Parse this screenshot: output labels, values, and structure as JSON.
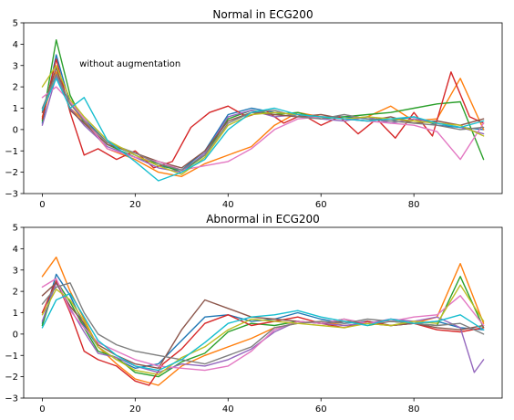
{
  "chart_data": [
    {
      "type": "line",
      "title": "Normal in ECG200",
      "annotation": "without augmentation",
      "xlim": [
        -4,
        99
      ],
      "ylim": [
        -3,
        5
      ],
      "xticks": [
        0,
        20,
        40,
        60,
        80
      ],
      "yticks": [
        -3,
        -2,
        -1,
        0,
        1,
        2,
        3,
        4,
        5
      ],
      "colors": [
        "#1f77b4",
        "#ff7f0e",
        "#2ca02c",
        "#d62728",
        "#9467bd",
        "#8c564b",
        "#e377c2",
        "#7f7f7f",
        "#bcbd22",
        "#17becf"
      ],
      "series": [
        {
          "x": [
            0,
            3,
            6,
            9,
            14,
            20,
            25,
            30,
            35,
            40,
            45,
            50,
            55,
            60,
            65,
            70,
            75,
            80,
            85,
            90,
            95
          ],
          "values": [
            0.3,
            3.5,
            1.2,
            0.5,
            -0.6,
            -1.2,
            -1.7,
            -1.9,
            -1.0,
            0.7,
            1.0,
            0.8,
            0.7,
            0.6,
            0.6,
            0.5,
            0.4,
            0.6,
            0.2,
            0.1,
            0.0
          ]
        },
        {
          "x": [
            0,
            3,
            6,
            9,
            14,
            20,
            25,
            30,
            35,
            40,
            45,
            50,
            55,
            60,
            65,
            70,
            75,
            80,
            85,
            90,
            95
          ],
          "values": [
            0.6,
            2.7,
            1.0,
            0.4,
            -0.9,
            -1.4,
            -2.0,
            -2.2,
            -1.6,
            -1.2,
            -0.8,
            0.2,
            0.8,
            0.6,
            0.5,
            0.6,
            1.1,
            0.4,
            0.5,
            2.4,
            0.0
          ]
        },
        {
          "x": [
            0,
            3,
            6,
            9,
            14,
            20,
            25,
            30,
            35,
            40,
            45,
            50,
            55,
            60,
            65,
            70,
            75,
            80,
            85,
            90,
            95
          ],
          "values": [
            0.4,
            4.2,
            1.6,
            0.3,
            -0.7,
            -1.3,
            -1.6,
            -2.0,
            -1.2,
            0.5,
            0.9,
            0.7,
            0.8,
            0.5,
            0.6,
            0.7,
            0.8,
            1.0,
            1.2,
            1.3,
            -1.4
          ]
        },
        {
          "x": [
            0,
            3,
            6,
            9,
            12,
            16,
            20,
            24,
            28,
            32,
            36,
            40,
            44,
            48,
            52,
            56,
            60,
            64,
            68,
            72,
            76,
            80,
            84,
            88,
            92,
            95
          ],
          "values": [
            0.5,
            3.3,
            0.8,
            -1.2,
            -0.9,
            -1.4,
            -1.0,
            -1.8,
            -1.5,
            0.1,
            0.8,
            1.1,
            0.6,
            0.9,
            0.3,
            0.7,
            0.2,
            0.6,
            -0.2,
            0.5,
            -0.4,
            0.8,
            -0.3,
            2.7,
            0.6,
            0.3
          ]
        },
        {
          "x": [
            0,
            3,
            6,
            9,
            14,
            20,
            25,
            30,
            35,
            40,
            45,
            50,
            55,
            60,
            65,
            70,
            75,
            80,
            85,
            90,
            95
          ],
          "values": [
            0.2,
            2.5,
            1.0,
            0.2,
            -0.8,
            -1.3,
            -1.8,
            -2.0,
            -1.1,
            0.6,
            0.9,
            0.6,
            0.7,
            0.5,
            0.4,
            0.6,
            0.3,
            0.5,
            0.3,
            0.1,
            -0.2
          ]
        },
        {
          "x": [
            0,
            3,
            6,
            9,
            14,
            20,
            25,
            30,
            35,
            40,
            45,
            50,
            55,
            60,
            65,
            70,
            75,
            80,
            85,
            90,
            95
          ],
          "values": [
            0.8,
            2.9,
            0.9,
            0.3,
            -0.7,
            -1.1,
            -1.5,
            -1.8,
            -1.0,
            0.4,
            0.8,
            0.7,
            0.6,
            0.7,
            0.5,
            0.4,
            0.6,
            0.3,
            0.4,
            0.2,
            0.5
          ]
        },
        {
          "x": [
            0,
            3,
            6,
            9,
            14,
            20,
            25,
            30,
            35,
            40,
            45,
            50,
            55,
            60,
            65,
            70,
            75,
            80,
            85,
            90,
            95
          ],
          "values": [
            1.5,
            2.0,
            1.3,
            0.5,
            -0.9,
            -1.3,
            -1.5,
            -1.9,
            -1.7,
            -1.5,
            -0.9,
            0.0,
            0.5,
            0.6,
            0.5,
            0.4,
            0.3,
            0.2,
            -0.1,
            -1.4,
            0.3
          ]
        },
        {
          "x": [
            0,
            3,
            6,
            9,
            14,
            20,
            25,
            30,
            35,
            40,
            45,
            50,
            55,
            60,
            65,
            70,
            75,
            80,
            85,
            90,
            95
          ],
          "values": [
            1.0,
            2.6,
            1.2,
            0.4,
            -0.6,
            -1.1,
            -1.6,
            -1.9,
            -1.2,
            0.3,
            0.8,
            0.9,
            0.6,
            0.5,
            0.7,
            0.5,
            0.4,
            0.3,
            0.2,
            0.0,
            0.1
          ]
        },
        {
          "x": [
            0,
            3,
            6,
            9,
            14,
            20,
            25,
            30,
            35,
            40,
            45,
            50,
            55,
            60,
            65,
            70,
            75,
            80,
            85,
            90,
            95
          ],
          "values": [
            2.0,
            3.0,
            1.4,
            0.6,
            -0.5,
            -1.2,
            -1.7,
            -2.1,
            -1.3,
            0.2,
            0.7,
            0.8,
            0.7,
            0.6,
            0.5,
            0.6,
            0.5,
            0.4,
            0.3,
            0.2,
            -0.3
          ]
        },
        {
          "x": [
            0,
            3,
            6,
            9,
            14,
            20,
            25,
            30,
            35,
            40,
            45,
            50,
            55,
            60,
            65,
            70,
            75,
            80,
            85,
            90,
            95
          ],
          "values": [
            0.9,
            2.4,
            1.0,
            1.5,
            -0.5,
            -1.5,
            -2.4,
            -2.0,
            -1.4,
            0.0,
            0.8,
            1.0,
            0.7,
            0.6,
            0.5,
            0.4,
            0.5,
            0.6,
            0.3,
            0.1,
            0.4
          ]
        }
      ]
    },
    {
      "type": "line",
      "title": "Abnormal in ECG200",
      "xlim": [
        -4,
        99
      ],
      "ylim": [
        -3,
        5
      ],
      "xticks": [
        0,
        20,
        40,
        60,
        80
      ],
      "yticks": [
        -3,
        -2,
        -1,
        0,
        1,
        2,
        3,
        4,
        5
      ],
      "colors": [
        "#1f77b4",
        "#ff7f0e",
        "#2ca02c",
        "#d62728",
        "#9467bd",
        "#8c564b",
        "#e377c2",
        "#7f7f7f",
        "#bcbd22",
        "#17becf"
      ],
      "series": [
        {
          "x": [
            0,
            3,
            6,
            9,
            12,
            16,
            20,
            25,
            30,
            35,
            40,
            45,
            50,
            55,
            60,
            65,
            70,
            75,
            80,
            85,
            90,
            95
          ],
          "values": [
            0.5,
            2.8,
            1.8,
            0.4,
            -0.6,
            -1.2,
            -1.6,
            -1.4,
            -0.3,
            0.8,
            0.9,
            0.6,
            0.7,
            1.0,
            0.7,
            0.5,
            0.6,
            0.4,
            0.5,
            0.6,
            0.3,
            0.2
          ]
        },
        {
          "x": [
            0,
            3,
            6,
            9,
            12,
            16,
            20,
            25,
            30,
            35,
            40,
            45,
            50,
            55,
            60,
            65,
            70,
            75,
            80,
            85,
            90,
            95
          ],
          "values": [
            2.7,
            3.6,
            2.0,
            0.7,
            -0.6,
            -1.4,
            -2.1,
            -2.4,
            -1.5,
            -1.0,
            -0.6,
            -0.2,
            0.3,
            0.5,
            0.6,
            0.4,
            0.5,
            0.6,
            0.5,
            0.8,
            3.3,
            0.5
          ]
        },
        {
          "x": [
            0,
            3,
            6,
            9,
            12,
            16,
            20,
            25,
            30,
            35,
            40,
            45,
            50,
            55,
            60,
            65,
            70,
            75,
            80,
            85,
            90,
            95
          ],
          "values": [
            0.4,
            2.5,
            1.5,
            0.3,
            -0.8,
            -1.1,
            -1.8,
            -2.0,
            -1.3,
            -0.9,
            0.1,
            0.5,
            0.4,
            0.6,
            0.5,
            0.7,
            0.4,
            0.6,
            0.5,
            0.4,
            2.7,
            0.3
          ]
        },
        {
          "x": [
            0,
            3,
            6,
            9,
            12,
            16,
            20,
            23,
            26,
            30,
            35,
            40,
            45,
            50,
            55,
            60,
            65,
            70,
            75,
            80,
            85,
            90,
            95
          ],
          "values": [
            1.0,
            2.5,
            1.0,
            -0.8,
            -1.2,
            -1.5,
            -2.2,
            -2.4,
            -1.4,
            -0.7,
            0.5,
            0.9,
            0.4,
            0.6,
            0.8,
            0.5,
            0.3,
            0.6,
            0.4,
            0.5,
            0.2,
            0.1,
            0.3
          ]
        },
        {
          "x": [
            0,
            3,
            6,
            9,
            12,
            16,
            20,
            25,
            30,
            35,
            40,
            45,
            50,
            55,
            60,
            65,
            70,
            75,
            80,
            85,
            90,
            93,
            95
          ],
          "values": [
            0.6,
            2.4,
            1.2,
            0.1,
            -0.9,
            -1.1,
            -1.5,
            -1.8,
            -1.4,
            -1.5,
            -1.2,
            -0.7,
            0.1,
            0.6,
            0.5,
            0.4,
            0.5,
            0.7,
            0.6,
            0.8,
            0.3,
            -1.8,
            -1.2
          ]
        },
        {
          "x": [
            0,
            3,
            6,
            9,
            12,
            16,
            20,
            25,
            30,
            35,
            40,
            45,
            50,
            55,
            60,
            65,
            70,
            75,
            80,
            85,
            90,
            95
          ],
          "values": [
            1.8,
            2.4,
            1.3,
            0.5,
            -0.5,
            -1.0,
            -1.4,
            -1.6,
            0.2,
            1.6,
            1.2,
            0.8,
            0.7,
            0.6,
            0.5,
            0.6,
            0.5,
            0.4,
            0.5,
            0.3,
            0.2,
            0.4
          ]
        },
        {
          "x": [
            0,
            3,
            6,
            9,
            12,
            16,
            20,
            25,
            30,
            35,
            40,
            45,
            50,
            55,
            60,
            65,
            70,
            75,
            80,
            85,
            90,
            95
          ],
          "values": [
            2.2,
            2.6,
            1.1,
            0.3,
            -0.4,
            -0.8,
            -1.2,
            -1.5,
            -1.6,
            -1.7,
            -1.5,
            -0.8,
            0.2,
            0.6,
            0.5,
            0.7,
            0.5,
            0.6,
            0.8,
            0.9,
            1.8,
            0.4
          ]
        },
        {
          "x": [
            0,
            3,
            6,
            9,
            12,
            16,
            20,
            25,
            30,
            35,
            40,
            45,
            50,
            55,
            60,
            65,
            70,
            75,
            80,
            85,
            90,
            95
          ],
          "values": [
            1.4,
            2.2,
            2.4,
            1.0,
            0.0,
            -0.5,
            -0.8,
            -1.0,
            -1.2,
            -1.4,
            -1.0,
            -0.6,
            0.3,
            0.5,
            0.6,
            0.5,
            0.7,
            0.6,
            0.5,
            0.4,
            0.5,
            0.0
          ]
        },
        {
          "x": [
            0,
            3,
            6,
            9,
            12,
            16,
            20,
            25,
            30,
            35,
            40,
            45,
            50,
            55,
            60,
            65,
            70,
            75,
            80,
            85,
            90,
            95
          ],
          "values": [
            0.9,
            2.1,
            1.6,
            0.6,
            -0.6,
            -1.2,
            -1.7,
            -1.9,
            -1.1,
            -0.6,
            0.2,
            0.7,
            0.6,
            0.5,
            0.4,
            0.3,
            0.5,
            0.4,
            0.6,
            0.5,
            2.3,
            0.6
          ]
        },
        {
          "x": [
            0,
            3,
            6,
            9,
            12,
            16,
            20,
            25,
            30,
            35,
            40,
            45,
            50,
            55,
            60,
            65,
            70,
            75,
            80,
            85,
            90,
            95
          ],
          "values": [
            0.3,
            1.6,
            1.9,
            0.8,
            -0.3,
            -1.0,
            -1.5,
            -1.7,
            -1.2,
            -0.4,
            0.5,
            0.8,
            0.9,
            1.1,
            0.8,
            0.6,
            0.4,
            0.7,
            0.5,
            0.6,
            0.9,
            0.2
          ]
        }
      ]
    }
  ]
}
